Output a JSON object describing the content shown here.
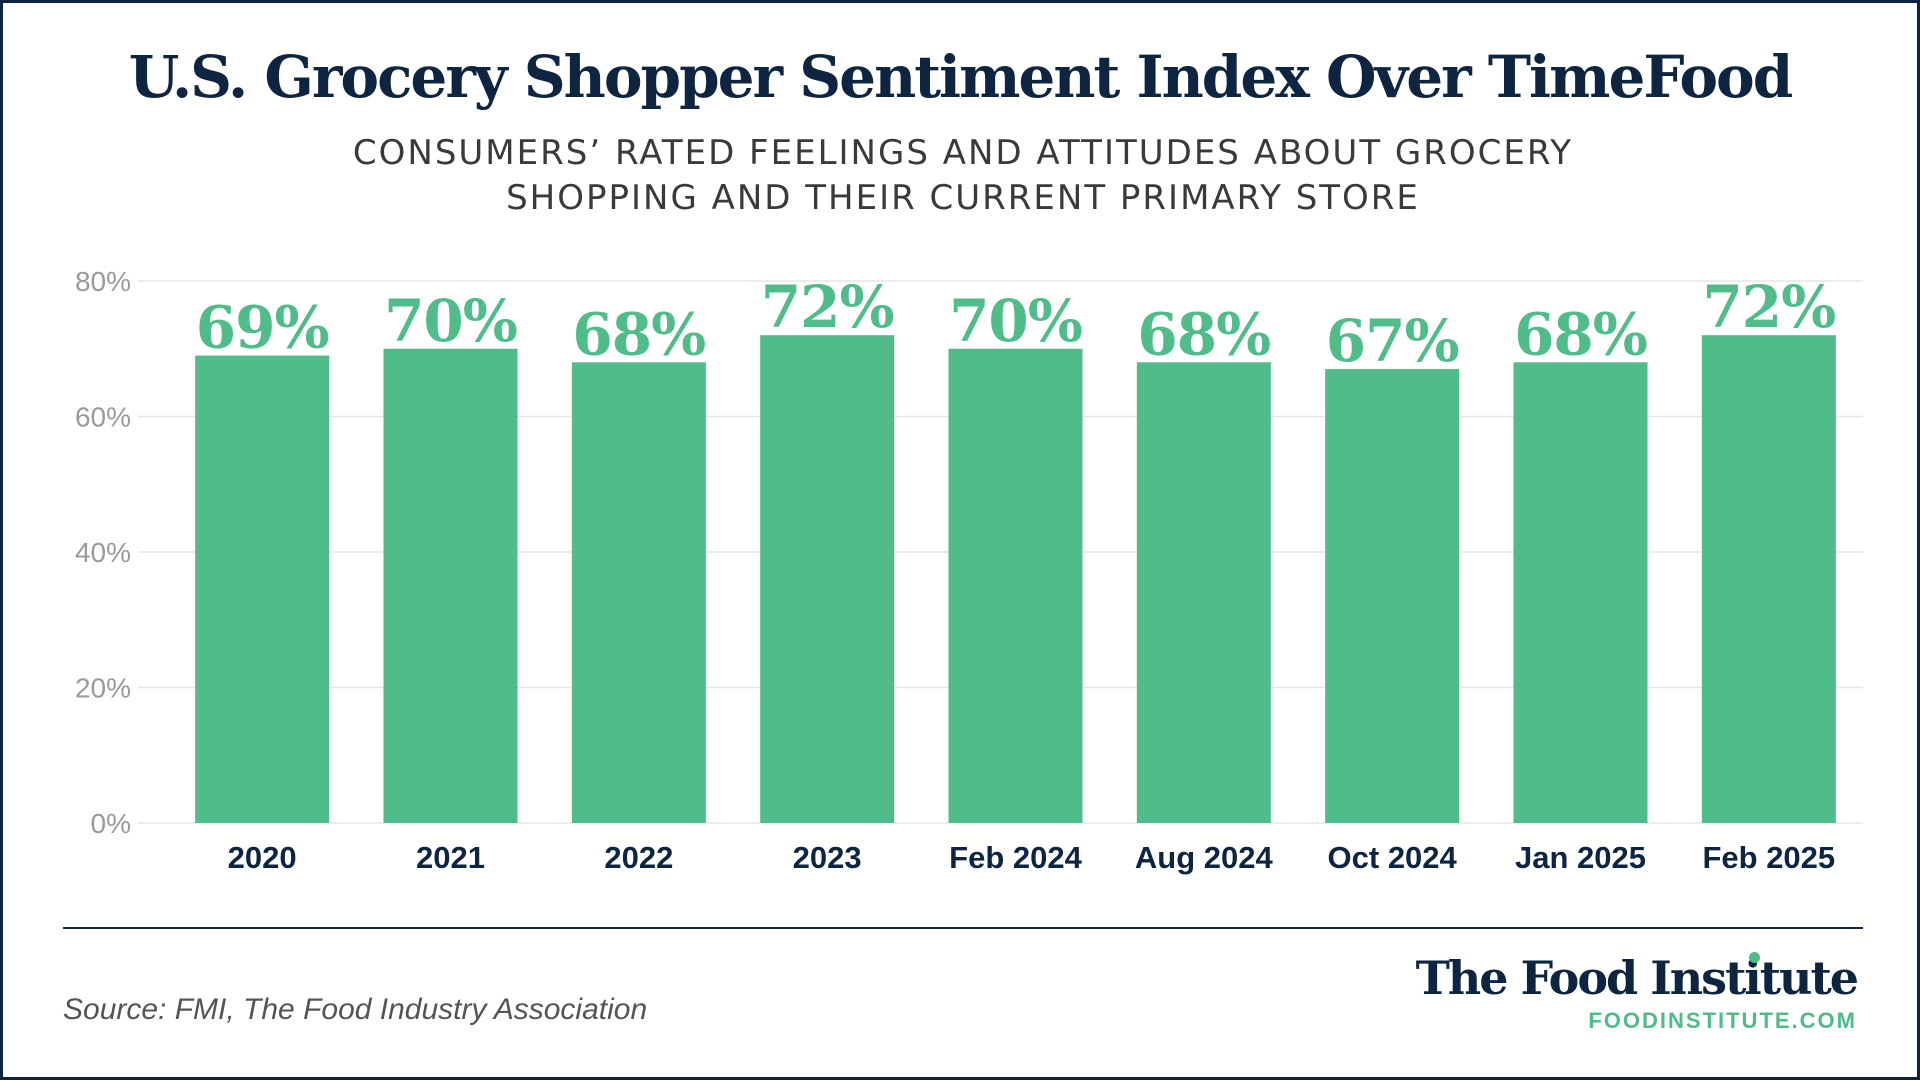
{
  "title": "U.S. Grocery Shopper Sentiment Index Over TimeFood",
  "subtitle": "CONSUMERS’ RATED FEELINGS AND ATTITUDES ABOUT GROCERY SHOPPING AND THEIR CURRENT PRIMARY STORE",
  "source": "Source: FMI, The Food Industry Association",
  "brand": {
    "name": "The Food Institute",
    "url": "FOODINSTITUTE.COM"
  },
  "colors": {
    "bar": "#4fbc8a",
    "navy": "#0d2541",
    "grid": "#e6e6e6",
    "axis_text": "#9a9a9a"
  },
  "chart_data": {
    "type": "bar",
    "categories": [
      "2020",
      "2021",
      "2022",
      "2023",
      "Feb 2024",
      "Aug 2024",
      "Oct 2024",
      "Jan 2025",
      "Feb 2025"
    ],
    "values": [
      69,
      70,
      68,
      72,
      70,
      68,
      67,
      68,
      72
    ],
    "data_labels": [
      "69%",
      "70%",
      "68%",
      "72%",
      "70%",
      "68%",
      "67%",
      "68%",
      "72%"
    ],
    "yticks": [
      0,
      20,
      40,
      60,
      80
    ],
    "ytick_labels": [
      "0%",
      "20%",
      "40%",
      "60%",
      "80%"
    ],
    "ylim": [
      0,
      80
    ],
    "grid": true,
    "xlabel": "",
    "ylabel": ""
  }
}
